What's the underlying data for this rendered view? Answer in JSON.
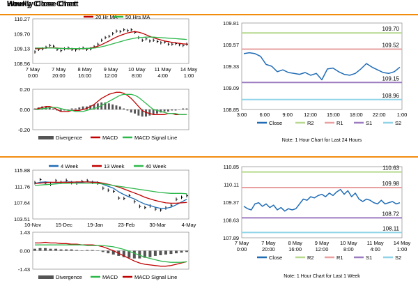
{
  "sections": {
    "hourly_title": "Hourly Close Chart",
    "weekly_title": "Weekly Close Chart"
  },
  "colors": {
    "orange_rule": "#f28c0f",
    "close": "#1f6cb5",
    "ma_short": "#c00000",
    "ma_long": "#2eb84b",
    "ohlc": "#000000",
    "divergence": "#555555",
    "r2": "#b6d98d",
    "r1": "#e8a0a0",
    "s1": "#9c7bc0",
    "s2": "#8fd3e8"
  },
  "chart_data": [
    {
      "id": "hourly-price",
      "type": "line",
      "x_ticks": [
        "7 May\n0:00",
        "7 May\n20:00",
        "8 May\n16:00",
        "9 May\n12:00",
        "10 May\n8:00",
        "11 May\n4:00",
        "14 May\n1:00"
      ],
      "y_ticks": [
        "110.27",
        "109.70",
        "109.13",
        "108.56"
      ],
      "ylim": [
        108.56,
        110.27
      ],
      "legend": [
        "20 Hr MA",
        "50 Hrs MA"
      ],
      "series": [
        {
          "name": "Close",
          "role": "ohlc",
          "values": [
            109.0,
            109.1,
            109.12,
            109.18,
            109.25,
            109.22,
            109.1,
            109.05,
            109.12,
            109.15,
            109.1,
            109.08,
            109.12,
            109.15,
            109.1,
            109.12,
            109.2,
            109.3,
            109.45,
            109.55,
            109.6,
            109.7,
            109.8,
            109.78,
            109.85,
            109.82,
            109.85,
            109.75,
            109.55,
            109.45,
            109.5,
            109.42,
            109.45,
            109.4,
            109.35,
            109.38,
            109.3,
            109.3,
            109.32,
            109.28,
            109.25,
            109.3
          ]
        },
        {
          "name": "20 Hr MA",
          "values": [
            109.12,
            109.13,
            109.14,
            109.15,
            109.16,
            109.16,
            109.15,
            109.14,
            109.13,
            109.12,
            109.12,
            109.12,
            109.12,
            109.13,
            109.13,
            109.15,
            109.18,
            109.22,
            109.28,
            109.35,
            109.42,
            109.5,
            109.57,
            109.63,
            109.68,
            109.73,
            109.76,
            109.78,
            109.76,
            109.72,
            109.66,
            109.6,
            109.55,
            109.5,
            109.46,
            109.42,
            109.4,
            109.37,
            109.35,
            109.33,
            109.31,
            109.3
          ]
        },
        {
          "name": "50 Hrs MA",
          "values": [
            109.15,
            109.15,
            109.15,
            109.15,
            109.15,
            109.15,
            109.14,
            109.14,
            109.13,
            109.13,
            109.13,
            109.13,
            109.13,
            109.13,
            109.14,
            109.14,
            109.15,
            109.17,
            109.2,
            109.23,
            109.27,
            109.31,
            109.35,
            109.39,
            109.43,
            109.47,
            109.5,
            109.53,
            109.55,
            109.56,
            109.57,
            109.57,
            109.57,
            109.56,
            109.55,
            109.54,
            109.53,
            109.52,
            109.51,
            109.5,
            109.49,
            109.48
          ]
        }
      ]
    },
    {
      "id": "hourly-macd",
      "type": "bar",
      "y_ticks": [
        "0.20",
        "0.00",
        "-0.20"
      ],
      "ylim": [
        -0.2,
        0.2
      ],
      "legend": [
        "Divergence",
        "MACD",
        "MACD Signal Line"
      ],
      "series": [
        {
          "name": "Divergence",
          "values": [
            0.01,
            0.02,
            0.03,
            0.03,
            0.02,
            0.01,
            -0.01,
            -0.02,
            -0.01,
            0.0,
            0.01,
            0.01,
            0.02,
            0.03,
            0.03,
            0.04,
            0.05,
            0.06,
            0.07,
            0.07,
            0.06,
            0.05,
            0.04,
            0.03,
            0.01,
            -0.01,
            -0.03,
            -0.04,
            -0.06,
            -0.07,
            -0.07,
            -0.06,
            -0.05,
            -0.04,
            -0.03,
            -0.02,
            -0.02,
            -0.01,
            -0.01,
            0.0,
            0.01,
            0.01
          ]
        },
        {
          "name": "MACD",
          "values": [
            0.0,
            0.01,
            0.02,
            0.03,
            0.03,
            0.02,
            0.0,
            -0.02,
            -0.02,
            -0.02,
            -0.01,
            -0.01,
            -0.01,
            0.0,
            0.01,
            0.03,
            0.05,
            0.08,
            0.11,
            0.13,
            0.15,
            0.16,
            0.17,
            0.17,
            0.16,
            0.14,
            0.11,
            0.07,
            0.03,
            -0.01,
            -0.03,
            -0.04,
            -0.05,
            -0.05,
            -0.05,
            -0.05,
            -0.04,
            -0.04,
            -0.05,
            -0.05,
            -0.05,
            -0.05
          ]
        },
        {
          "name": "MACD Signal Line",
          "values": [
            0.0,
            0.0,
            0.01,
            0.01,
            0.02,
            0.02,
            0.02,
            0.01,
            0.0,
            -0.01,
            -0.01,
            -0.02,
            -0.02,
            -0.02,
            -0.01,
            0.0,
            0.01,
            0.02,
            0.04,
            0.06,
            0.08,
            0.1,
            0.12,
            0.14,
            0.15,
            0.15,
            0.15,
            0.14,
            0.12,
            0.09,
            0.06,
            0.03,
            0.0,
            -0.01,
            -0.02,
            -0.03,
            -0.04,
            -0.04,
            -0.04,
            -0.05,
            -0.05,
            -0.05
          ]
        }
      ]
    },
    {
      "id": "hourly-levels",
      "type": "line",
      "x_ticks": [
        "3:00",
        "6:00",
        "9:00",
        "12:00",
        "15:00",
        "18:00",
        "22:00",
        "1:00"
      ],
      "y_ticks": [
        "109.81",
        "109.57",
        "109.33",
        "109.09",
        "108.85"
      ],
      "ylim": [
        108.85,
        109.81
      ],
      "level_labels": [
        "109.70",
        "109.52",
        "109.15",
        "108.96"
      ],
      "levels": {
        "R2": 109.7,
        "R1": 109.52,
        "S1": 109.15,
        "S2": 108.96
      },
      "legend": [
        "Close",
        "R2",
        "R1",
        "S1",
        "S2"
      ],
      "note": "Note: 1 Hour Chart for Last 24 Hours",
      "series": [
        {
          "name": "Close",
          "values": [
            109.47,
            109.48,
            109.47,
            109.44,
            109.35,
            109.33,
            109.27,
            109.29,
            109.26,
            109.25,
            109.24,
            109.26,
            109.23,
            109.25,
            109.18,
            109.3,
            109.31,
            109.27,
            109.24,
            109.23,
            109.25,
            109.3,
            109.36,
            109.32,
            109.29,
            109.26,
            109.25,
            109.27,
            109.32
          ]
        }
      ]
    },
    {
      "id": "weekly-price",
      "type": "line",
      "x_ticks": [
        "10-Nov",
        "15-Dec",
        "19-Jan",
        "23-Feb",
        "30-Mar",
        "4-May"
      ],
      "y_ticks": [
        "115.88",
        "111.76",
        "107.64",
        "103.51"
      ],
      "ylim": [
        103.51,
        115.88
      ],
      "legend": [
        "4 Week",
        "13 Week",
        "40 Week"
      ],
      "series": [
        {
          "name": "Close",
          "role": "ohlc",
          "values": [
            112.7,
            113.5,
            112.6,
            112.3,
            113.2,
            112.8,
            113.3,
            112.7,
            112.6,
            113.0,
            113.2,
            112.8,
            112.6,
            111.3,
            110.8,
            110.5,
            108.8,
            108.7,
            109.4,
            107.9,
            106.7,
            106.4,
            106.8,
            106.0,
            105.8,
            106.3,
            107.0,
            108.5,
            109.0,
            109.4
          ]
        },
        {
          "name": "4 Week",
          "values": [
            112.5,
            112.8,
            112.9,
            112.8,
            112.7,
            112.8,
            112.9,
            112.9,
            112.8,
            112.8,
            112.9,
            112.9,
            112.8,
            112.3,
            111.8,
            111.3,
            110.4,
            109.7,
            109.1,
            108.6,
            107.9,
            107.3,
            106.9,
            106.5,
            106.2,
            106.2,
            106.5,
            107.1,
            107.8,
            108.5
          ]
        },
        {
          "name": "13 Week",
          "values": [
            112.5,
            112.6,
            112.7,
            112.8,
            112.8,
            112.8,
            112.8,
            112.8,
            112.9,
            112.9,
            112.9,
            112.8,
            112.8,
            112.6,
            112.3,
            112.0,
            111.6,
            111.1,
            110.6,
            110.1,
            109.6,
            109.0,
            108.6,
            108.2,
            107.9,
            107.6,
            107.5,
            107.5,
            107.6,
            107.7
          ]
        },
        {
          "name": "40 Week",
          "values": [
            112.0,
            112.1,
            112.2,
            112.3,
            112.4,
            112.5,
            112.5,
            112.6,
            112.6,
            112.6,
            112.6,
            112.6,
            112.5,
            112.4,
            112.2,
            112.0,
            111.8,
            111.6,
            111.4,
            111.2,
            111.0,
            110.8,
            110.6,
            110.4,
            110.2,
            110.1,
            110.0,
            110.0,
            110.0,
            109.9
          ]
        }
      ]
    },
    {
      "id": "weekly-macd",
      "type": "bar",
      "y_ticks": [
        "1.43",
        "0.00",
        "-1.43"
      ],
      "ylim": [
        -1.43,
        1.43
      ],
      "legend": [
        "Divergence",
        "MACD",
        "MACD Signal Line"
      ],
      "series": [
        {
          "name": "Divergence",
          "values": [
            0.15,
            0.2,
            0.2,
            0.15,
            0.15,
            0.1,
            0.1,
            0.1,
            0.05,
            0.0,
            0.05,
            0.05,
            0.0,
            -0.1,
            -0.2,
            -0.3,
            -0.4,
            -0.5,
            -0.55,
            -0.6,
            -0.6,
            -0.55,
            -0.5,
            -0.4,
            -0.35,
            -0.3,
            -0.25,
            -0.2,
            -0.15,
            -0.1
          ]
        },
        {
          "name": "MACD",
          "values": [
            0.6,
            0.6,
            0.65,
            0.6,
            0.6,
            0.55,
            0.55,
            0.5,
            0.5,
            0.45,
            0.45,
            0.45,
            0.4,
            0.3,
            0.15,
            0.0,
            -0.2,
            -0.4,
            -0.6,
            -0.8,
            -0.95,
            -1.05,
            -1.1,
            -1.15,
            -1.2,
            -1.2,
            -1.15,
            -1.05,
            -0.95,
            -0.85
          ]
        },
        {
          "name": "MACD Signal Line",
          "values": [
            0.45,
            0.45,
            0.45,
            0.45,
            0.45,
            0.45,
            0.45,
            0.45,
            0.45,
            0.45,
            0.4,
            0.4,
            0.4,
            0.4,
            0.35,
            0.3,
            0.2,
            0.1,
            -0.05,
            -0.2,
            -0.35,
            -0.5,
            -0.6,
            -0.7,
            -0.8,
            -0.85,
            -0.9,
            -0.9,
            -0.9,
            -0.85
          ]
        }
      ]
    },
    {
      "id": "weekly-levels",
      "type": "line",
      "x_ticks": [
        "7 May\n0:00",
        "7 May\n20:00",
        "8 May\n16:00",
        "9 May\n12:00",
        "10 May\n8:00",
        "11 May\n4:00",
        "14 May\n1:00"
      ],
      "y_ticks": [
        "110.85",
        "110.11",
        "109.37",
        "108.63",
        "107.89"
      ],
      "ylim": [
        107.89,
        110.85
      ],
      "level_labels": [
        "110.63",
        "109.98",
        "108.72",
        "108.11"
      ],
      "levels": {
        "R2": 110.63,
        "R1": 109.98,
        "S1": 108.72,
        "S2": 108.11
      },
      "legend": [
        "Close",
        "R2",
        "R1",
        "S1",
        "S2"
      ],
      "note": "Note: 1 Hour Chart for Last 1 Week",
      "series": [
        {
          "name": "Close",
          "values": [
            109.2,
            109.1,
            109.05,
            109.3,
            109.35,
            109.2,
            109.3,
            109.15,
            109.25,
            109.05,
            109.15,
            109.0,
            109.1,
            109.05,
            109.1,
            109.3,
            109.5,
            109.45,
            109.6,
            109.55,
            109.65,
            109.7,
            109.6,
            109.75,
            109.65,
            109.8,
            109.9,
            109.7,
            109.85,
            109.6,
            109.75,
            109.5,
            109.4,
            109.5,
            109.45,
            109.35,
            109.3,
            109.45,
            109.3,
            109.35,
            109.4,
            109.3,
            109.35
          ]
        }
      ]
    }
  ]
}
